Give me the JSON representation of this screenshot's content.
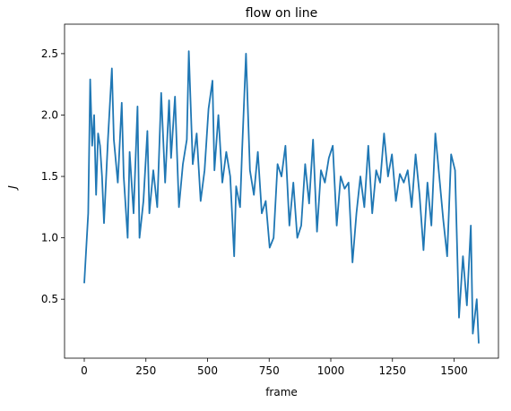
{
  "chart_data": {
    "type": "line",
    "title": "flow on line",
    "xlabel": "frame",
    "ylabel": "J",
    "x": [
      0,
      16,
      24,
      32,
      40,
      48,
      56,
      64,
      72,
      80,
      96,
      112,
      120,
      136,
      152,
      160,
      176,
      184,
      200,
      216,
      224,
      240,
      256,
      264,
      280,
      296,
      312,
      328,
      344,
      352,
      368,
      384,
      400,
      416,
      424,
      440,
      456,
      472,
      488,
      504,
      520,
      528,
      544,
      560,
      576,
      592,
      608,
      616,
      632,
      640,
      656,
      672,
      688,
      704,
      720,
      736,
      752,
      768,
      784,
      800,
      816,
      832,
      848,
      864,
      880,
      896,
      912,
      928,
      944,
      960,
      976,
      992,
      1008,
      1024,
      1040,
      1056,
      1072,
      1088,
      1104,
      1120,
      1136,
      1152,
      1168,
      1184,
      1200,
      1216,
      1232,
      1248,
      1264,
      1280,
      1296,
      1312,
      1328,
      1344,
      1360,
      1376,
      1392,
      1408,
      1424,
      1440,
      1456,
      1472,
      1488,
      1504,
      1520,
      1536,
      1552,
      1568,
      1576,
      1592,
      1600
    ],
    "series": [
      {
        "name": "J",
        "color": "#1f77b4",
        "values": [
          0.63,
          1.2,
          2.29,
          1.75,
          2.0,
          1.35,
          1.85,
          1.75,
          1.5,
          1.12,
          1.8,
          2.38,
          1.8,
          1.45,
          2.1,
          1.5,
          1.0,
          1.7,
          1.2,
          2.07,
          1.0,
          1.3,
          1.87,
          1.2,
          1.55,
          1.25,
          2.18,
          1.45,
          2.12,
          1.65,
          2.15,
          1.25,
          1.6,
          1.8,
          2.52,
          1.6,
          1.85,
          1.3,
          1.55,
          2.05,
          2.28,
          1.55,
          2.0,
          1.45,
          1.7,
          1.5,
          0.85,
          1.42,
          1.25,
          1.7,
          2.5,
          1.55,
          1.35,
          1.7,
          1.2,
          1.3,
          0.92,
          1.0,
          1.6,
          1.5,
          1.75,
          1.1,
          1.45,
          1.0,
          1.1,
          1.6,
          1.28,
          1.8,
          1.05,
          1.55,
          1.45,
          1.65,
          1.75,
          1.1,
          1.5,
          1.4,
          1.45,
          0.8,
          1.2,
          1.5,
          1.25,
          1.75,
          1.2,
          1.55,
          1.45,
          1.85,
          1.5,
          1.68,
          1.3,
          1.52,
          1.45,
          1.55,
          1.25,
          1.68,
          1.35,
          0.9,
          1.45,
          1.1,
          1.85,
          1.5,
          1.15,
          0.85,
          1.68,
          1.55,
          0.35,
          0.85,
          0.45,
          1.1,
          0.22,
          0.5,
          0.14
        ]
      }
    ],
    "xlim": [
      -80,
      1680
    ],
    "xticks": [
      0,
      250,
      500,
      750,
      1000,
      1250,
      1500
    ],
    "ylim": [
      0.02,
      2.74
    ],
    "yticks": [
      0.5,
      1.0,
      1.5,
      2.0,
      2.5
    ]
  }
}
